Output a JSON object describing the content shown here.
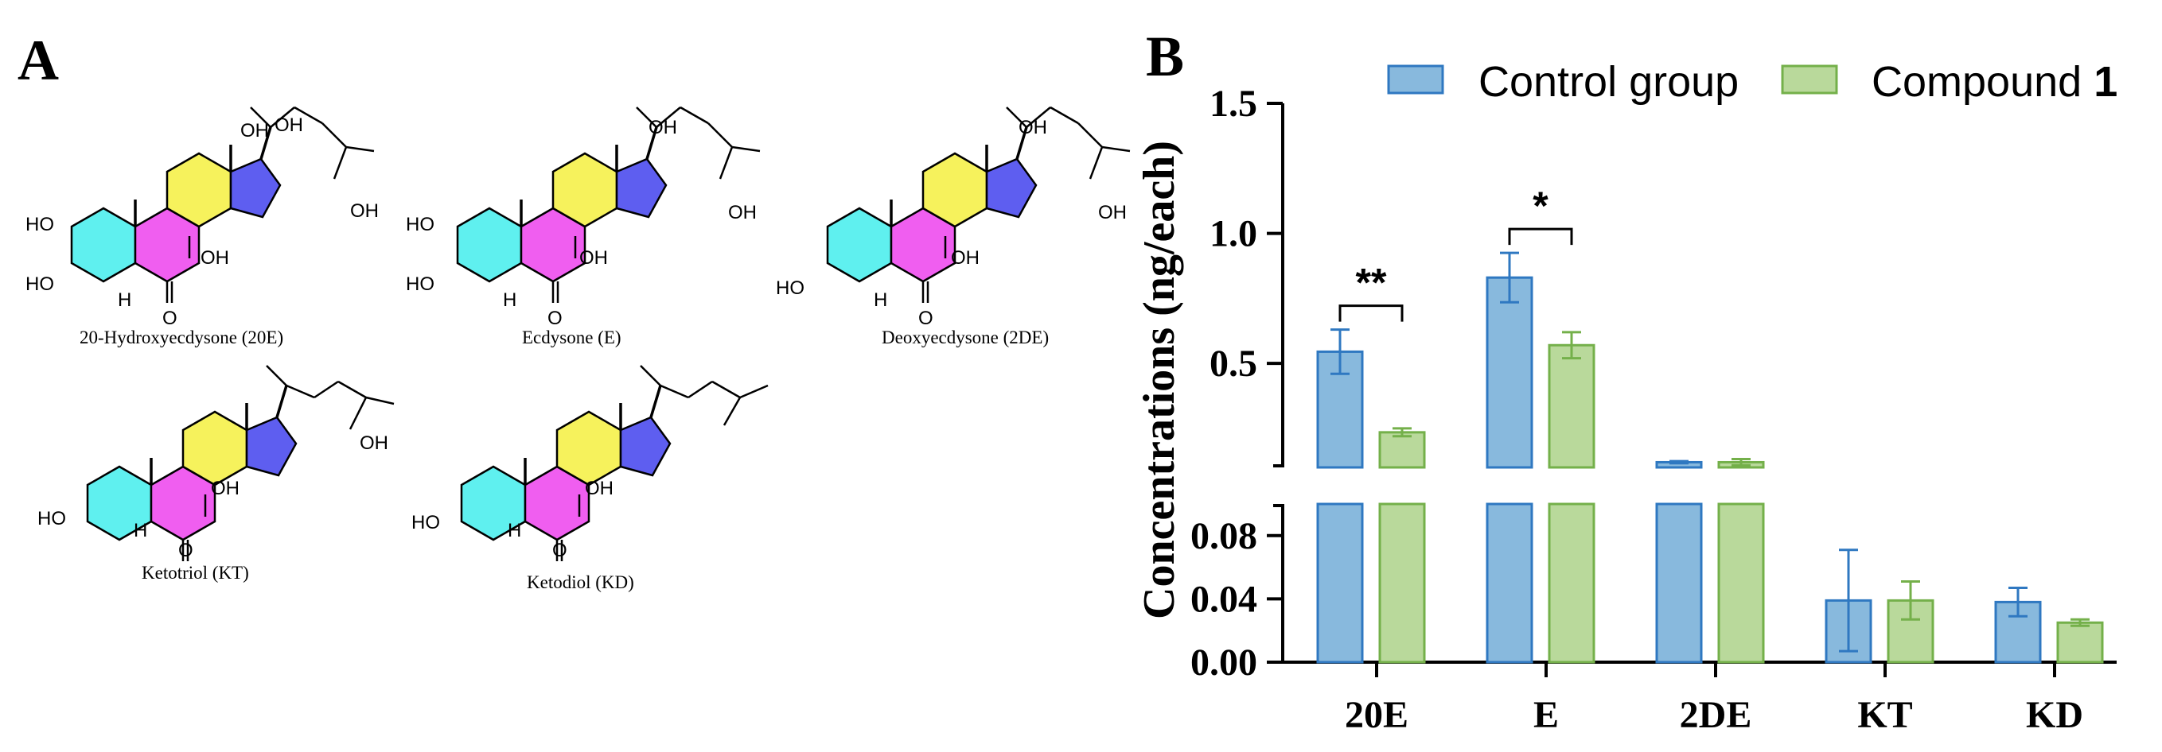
{
  "panel_a": {
    "letter": "A",
    "molecules": [
      {
        "name": "20-Hydroxyecdysone (20E)",
        "labels": [
          "HO",
          "HO",
          "H",
          "O",
          "OH",
          "OH",
          "OH",
          "OH"
        ]
      },
      {
        "name": "Ecdysone (E)",
        "labels": [
          "HO",
          "HO",
          "H",
          "O",
          "OH",
          "OH",
          "OH"
        ]
      },
      {
        "name": "Deoxyecdysone (2DE)",
        "labels": [
          "HO",
          "H",
          "O",
          "OH",
          "OH",
          "OH"
        ]
      },
      {
        "name": "Ketotriol (KT)",
        "labels": [
          "HO",
          "H",
          "O",
          "OH",
          "OH"
        ]
      },
      {
        "name": "Ketodiol (KD)",
        "labels": [
          "HO",
          "H",
          "O",
          "OH"
        ]
      }
    ],
    "ring_colors": {
      "a": "#5ff0ef",
      "b": "#f05ef0",
      "c": "#f6f25c",
      "d": "#5e5ef0"
    }
  },
  "panel_b": {
    "letter": "B",
    "legend": [
      {
        "label_main": "Control group",
        "label_bold": ""
      },
      {
        "label_main": "Compound ",
        "label_bold": "1"
      }
    ]
  },
  "chart_data": {
    "type": "bar",
    "ylabel": "Concentrations (ng/each)",
    "categories": [
      "20E",
      "E",
      "2DE",
      "KT",
      "KD"
    ],
    "series": [
      {
        "name": "Control group",
        "fill": "#88b9dd",
        "stroke": "#2f78c1",
        "values": [
          0.545,
          0.83,
          0.12,
          0.039,
          0.038
        ],
        "errors": [
          0.085,
          0.095,
          0.004,
          0.032,
          0.009
        ]
      },
      {
        "name": "Compound 1",
        "fill": "#b9d99b",
        "stroke": "#74b04a",
        "values": [
          0.235,
          0.57,
          0.12,
          0.039,
          0.025
        ],
        "errors": [
          0.015,
          0.05,
          0.012,
          0.012,
          0.002
        ]
      }
    ],
    "y_axis": {
      "broken": true,
      "lower_segment": {
        "range": [
          0,
          0.1
        ],
        "ticks": [
          0.0,
          0.04,
          0.08
        ],
        "tick_labels": [
          "0.00",
          "0.04",
          "0.08"
        ]
      },
      "upper_segment": {
        "range": [
          0.1,
          1.5
        ],
        "ticks": [
          0.5,
          1.0,
          1.5
        ],
        "tick_labels": [
          "0.5",
          "1.0",
          "1.5"
        ]
      }
    },
    "significance": [
      {
        "category_index": 0,
        "label": "**"
      },
      {
        "category_index": 1,
        "label": "*"
      }
    ],
    "legend_position": "top",
    "grid": false
  }
}
